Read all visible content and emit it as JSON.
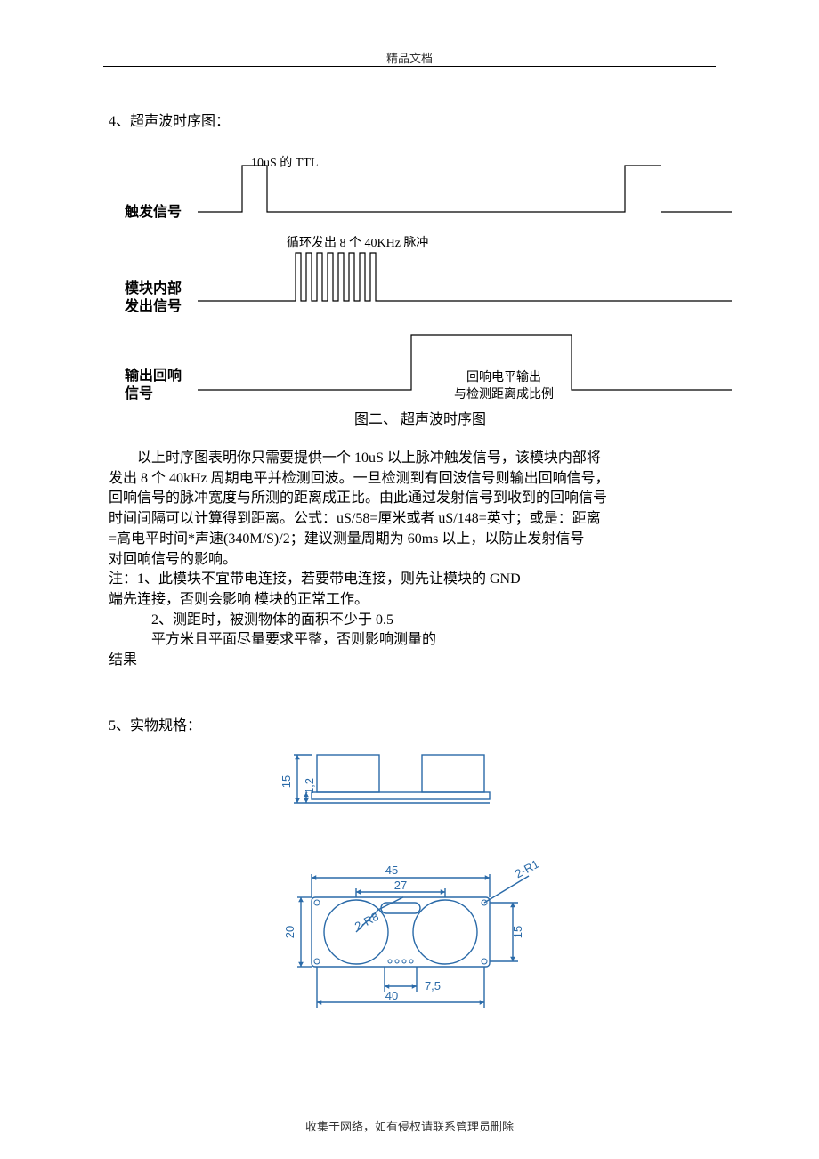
{
  "header": "精品文档",
  "footer": "收集于网络，如有侵权请联系管理员删除",
  "section4_title": "4、超声波时序图：",
  "timing": {
    "ttl_label": "10uS 的 TTL",
    "pulse_label": "循环发出 8 个 40KHz 脉冲",
    "echo_label_line1": "回响电平输出",
    "echo_label_line2": "与检测距离成比例",
    "row1_label": "触发信号",
    "row2_label_line1": "模块内部",
    "row2_label_line2": "发出信号",
    "row3_label_line1": "输出回响",
    "row3_label_line2": "信号",
    "caption": "图二、 超声波时序图",
    "stroke_color": "#000000",
    "stroke_width": 1.2,
    "pulse_count": 8
  },
  "body": {
    "p1_l1": "以上时序图表明你只需要提供一个 10uS 以上脉冲触发信号，该模块内部将",
    "p1_l2": "发出 8 个 40kHz 周期电平并检测回波。一旦检测到有回波信号则输出回响信号，",
    "p1_l3": "回响信号的脉冲宽度与所测的距离成正比。由此通过发射信号到收到的回响信号",
    "p1_l4": "时间间隔可以计算得到距离。公式：uS/58=厘米或者 uS/148=英寸；或是：距离",
    "p1_l5": "=高电平时间*声速(340M/S)/2；建议测量周期为 60ms 以上，以防止发射信号",
    "p1_l6": "对回响信号的影响。",
    "p2_l1": "注：1、此模块不宜带电连接，若要带电连接，则先让模块的 GND",
    "p2_l2": "端先连接，否则会影响 模块的正常工作。",
    "p3_l1": "2、测距时，被测物体的面积不少于 0.5",
    "p3_l2": "平方米且平面尽量要求平整，否则影响测量的",
    "p3_l3": "结果"
  },
  "section5_title": "5、实物规格：",
  "spec": {
    "stroke_color": "#2a6aa8",
    "stroke_width": 1.4,
    "text_color": "#2a6aa8",
    "dims": {
      "w45": "45",
      "w27": "27",
      "w40": "40",
      "w7_5": "7,5",
      "h20": "20",
      "h15_side": "15",
      "h15_top": "15",
      "h1_2": "1,2",
      "r1": "2-R1",
      "r8": "2-R8"
    }
  }
}
